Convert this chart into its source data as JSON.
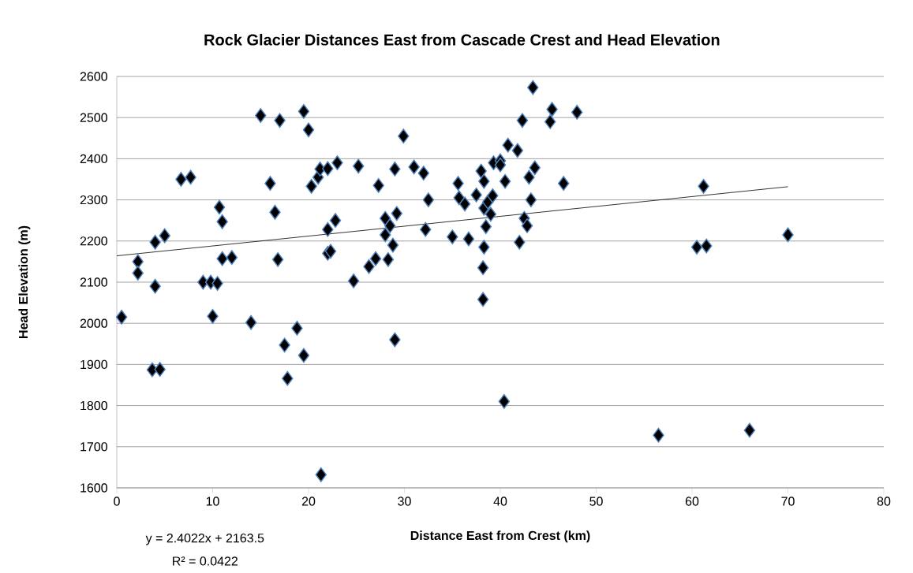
{
  "chart_data": {
    "type": "scatter",
    "title": "Rock Glacier Distances East from Cascade Crest and Head Elevation",
    "xlabel": "Distance East from Crest (km)",
    "ylabel": "Head Elevation (m)",
    "annotations": [
      "y = 2.4022x + 2163.5",
      "R² = 0.0422"
    ],
    "xlim": [
      0,
      80
    ],
    "xticks": [
      0,
      10,
      20,
      30,
      40,
      50,
      60,
      70,
      80
    ],
    "ylim": [
      1600,
      2600
    ],
    "yticks": [
      1600,
      1700,
      1800,
      1900,
      2000,
      2100,
      2200,
      2300,
      2400,
      2500,
      2600
    ],
    "grid": "y",
    "marker": "diamond",
    "series": [
      {
        "color": "#000000",
        "x": [
          0.5,
          2.2,
          2.2,
          4,
          4,
          3.7,
          4.5,
          5,
          6.7,
          7.7,
          9,
          9.8,
          10.5,
          10,
          10.7,
          11,
          11,
          12,
          14,
          15,
          16,
          16.5,
          16.8,
          17,
          17.5,
          17.8,
          18.8,
          19.5,
          19.5,
          20,
          20.3,
          21,
          21.2,
          21.3,
          22,
          22,
          22,
          22.3,
          22.8,
          23,
          24.7,
          25.2,
          26.3,
          27,
          27.3,
          28,
          28,
          28.3,
          28.5,
          28.8,
          29,
          29,
          29.2,
          29.9,
          31,
          32,
          32.2,
          32.5,
          35,
          35.6,
          35.7,
          36.3,
          36.7,
          37.5,
          38,
          38.3,
          38.3,
          38.3,
          38.2,
          38.2,
          38.5,
          38.7,
          39,
          39.2,
          39.3,
          40,
          40,
          40.5,
          40.4,
          40.8,
          41.8,
          42,
          42.3,
          42.5,
          42.8,
          43,
          43.2,
          43.4,
          43.6,
          45.2,
          45.4,
          46.6,
          48,
          56.5,
          60.5,
          61.2,
          61.5,
          66,
          70
        ],
        "values": [
          2015,
          2150,
          2122,
          2197,
          2090,
          1887,
          1888,
          2213,
          2350,
          2355,
          2100,
          2100,
          2097,
          2017,
          2282,
          2247,
          2157,
          2160,
          2002,
          2505,
          2340,
          2270,
          2155,
          2493,
          1947,
          1866,
          1988,
          2515,
          1922,
          2470,
          2333,
          2355,
          2375,
          1632,
          2376,
          2228,
          2170,
          2175,
          2250,
          2390,
          2103,
          2382,
          2138,
          2157,
          2335,
          2255,
          2215,
          2155,
          2237,
          2190,
          2375,
          1960,
          2267,
          2455,
          2380,
          2365,
          2228,
          2300,
          2210,
          2340,
          2305,
          2290,
          2205,
          2312,
          2370,
          2345,
          2280,
          2185,
          2135,
          2058,
          2235,
          2295,
          2265,
          2310,
          2390,
          2395,
          2385,
          2345,
          1810,
          2433,
          2420,
          2197,
          2493,
          2255,
          2237,
          2355,
          2300,
          2573,
          2378,
          2490,
          2520,
          2340,
          2513,
          1728,
          2185,
          2333,
          2188,
          1740,
          2215
        ]
      },
      {
        "type": "line",
        "color": "#000000",
        "marker": "none",
        "line_style": "solid",
        "x": [
          0,
          70
        ],
        "values": [
          2164,
          2332
        ]
      }
    ]
  }
}
